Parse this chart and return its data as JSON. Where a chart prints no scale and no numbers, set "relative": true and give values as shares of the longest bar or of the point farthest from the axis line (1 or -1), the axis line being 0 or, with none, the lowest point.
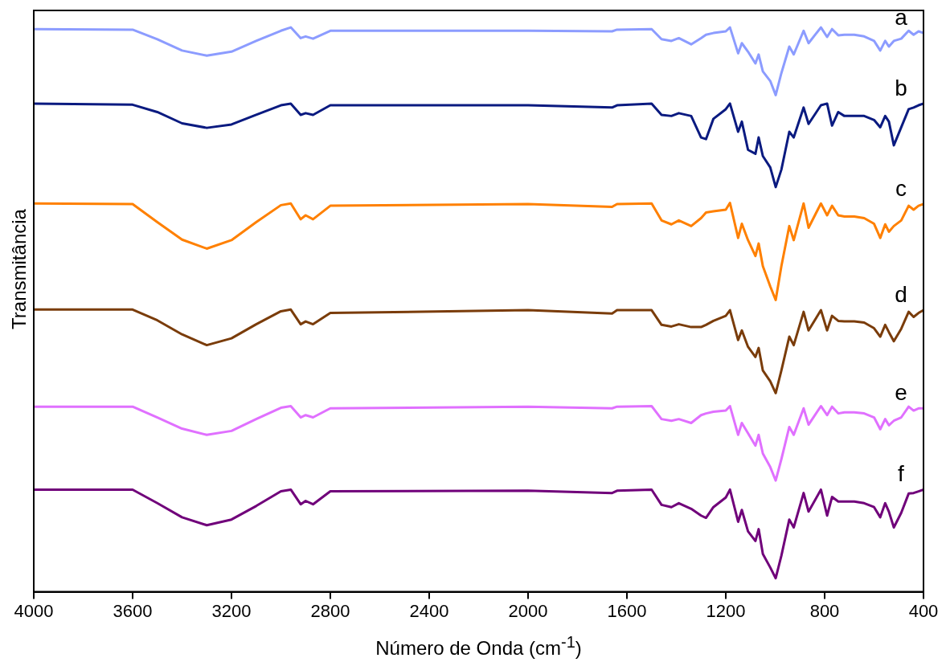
{
  "chart_data": {
    "type": "line",
    "relative": true,
    "xlabel": "Número de Onda (cm$^{-1}$)",
    "ylabel": "Transmitância",
    "xlim": [
      4000,
      400
    ],
    "xticks": [
      4000,
      3600,
      3200,
      2800,
      2400,
      2000,
      1600,
      1200,
      800,
      400
    ],
    "grid": false,
    "legend": false,
    "marker": "none",
    "line_style": "solid",
    "x": [
      4000,
      3600,
      3500,
      3400,
      3300,
      3200,
      3100,
      3000,
      2960,
      2920,
      2900,
      2870,
      2800,
      2000,
      1660,
      1640,
      1500,
      1460,
      1420,
      1390,
      1340,
      1300,
      1280,
      1250,
      1200,
      1183,
      1150,
      1135,
      1110,
      1080,
      1067,
      1050,
      1020,
      998,
      975,
      943,
      925,
      885,
      865,
      815,
      790,
      770,
      745,
      720,
      680,
      640,
      600,
      575,
      555,
      540,
      520,
      490,
      460,
      440,
      420,
      400
    ],
    "series": [
      {
        "name": "a",
        "color": "#8c9cff",
        "values": [
          0.997,
          0.996,
          0.979,
          0.959,
          0.95,
          0.957,
          0.976,
          0.994,
          1,
          0.981,
          0.984,
          0.98,
          0.994,
          0.994,
          0.993,
          0.996,
          0.997,
          0.979,
          0.976,
          0.981,
          0.97,
          0.981,
          0.987,
          0.99,
          0.993,
          1,
          0.954,
          0.972,
          0.957,
          0.936,
          0.952,
          0.922,
          0.905,
          0.88,
          0.919,
          0.966,
          0.952,
          0.994,
          0.972,
          1,
          0.983,
          0.997,
          0.986,
          0.987,
          0.987,
          0.984,
          0.976,
          0.959,
          0.976,
          0.966,
          0.976,
          0.98,
          0.994,
          0.987,
          0.993,
          0.99
        ]
      },
      {
        "name": "b",
        "color": "#0a1a80",
        "values": [
          0.865,
          0.863,
          0.85,
          0.83,
          0.822,
          0.828,
          0.845,
          0.862,
          0.865,
          0.845,
          0.848,
          0.845,
          0.862,
          0.862,
          0.858,
          0.862,
          0.865,
          0.845,
          0.843,
          0.848,
          0.843,
          0.805,
          0.802,
          0.838,
          0.855,
          0.865,
          0.815,
          0.833,
          0.783,
          0.776,
          0.805,
          0.772,
          0.752,
          0.717,
          0.748,
          0.815,
          0.805,
          0.858,
          0.829,
          0.862,
          0.865,
          0.826,
          0.85,
          0.843,
          0.843,
          0.843,
          0.836,
          0.823,
          0.843,
          0.833,
          0.791,
          0.823,
          0.855,
          0.858,
          0.862,
          0.865
        ]
      },
      {
        "name": "c",
        "color": "#ff8000",
        "values": [
          0.688,
          0.687,
          0.655,
          0.624,
          0.608,
          0.623,
          0.655,
          0.685,
          0.688,
          0.66,
          0.667,
          0.66,
          0.684,
          0.687,
          0.682,
          0.687,
          0.688,
          0.658,
          0.651,
          0.658,
          0.648,
          0.662,
          0.672,
          0.674,
          0.677,
          0.689,
          0.627,
          0.652,
          0.623,
          0.595,
          0.617,
          0.577,
          0.541,
          0.517,
          0.577,
          0.648,
          0.623,
          0.688,
          0.645,
          0.688,
          0.667,
          0.684,
          0.667,
          0.665,
          0.665,
          0.662,
          0.652,
          0.627,
          0.651,
          0.638,
          0.648,
          0.658,
          0.684,
          0.677,
          0.684,
          0.687
        ]
      },
      {
        "name": "d",
        "color": "#7a3c0a",
        "values": [
          0.5,
          0.5,
          0.481,
          0.456,
          0.437,
          0.449,
          0.474,
          0.497,
          0.5,
          0.474,
          0.479,
          0.474,
          0.494,
          0.499,
          0.493,
          0.499,
          0.499,
          0.473,
          0.47,
          0.474,
          0.469,
          0.469,
          0.473,
          0.48,
          0.489,
          0.499,
          0.446,
          0.463,
          0.434,
          0.416,
          0.432,
          0.392,
          0.373,
          0.352,
          0.392,
          0.452,
          0.437,
          0.496,
          0.463,
          0.499,
          0.463,
          0.489,
          0.48,
          0.479,
          0.479,
          0.477,
          0.467,
          0.452,
          0.473,
          0.46,
          0.444,
          0.466,
          0.496,
          0.487,
          0.494,
          0.499
        ]
      },
      {
        "name": "e",
        "color": "#e070ff",
        "values": [
          0.328,
          0.328,
          0.309,
          0.289,
          0.278,
          0.285,
          0.306,
          0.326,
          0.329,
          0.309,
          0.313,
          0.309,
          0.325,
          0.328,
          0.325,
          0.328,
          0.329,
          0.306,
          0.303,
          0.306,
          0.299,
          0.313,
          0.316,
          0.319,
          0.321,
          0.329,
          0.278,
          0.299,
          0.281,
          0.259,
          0.278,
          0.245,
          0.221,
          0.197,
          0.235,
          0.292,
          0.278,
          0.325,
          0.296,
          0.329,
          0.313,
          0.328,
          0.316,
          0.318,
          0.318,
          0.316,
          0.309,
          0.288,
          0.306,
          0.295,
          0.303,
          0.309,
          0.328,
          0.321,
          0.325,
          0.325
        ]
      },
      {
        "name": "f",
        "color": "#70007a",
        "values": [
          0.181,
          0.181,
          0.157,
          0.132,
          0.118,
          0.128,
          0.152,
          0.178,
          0.181,
          0.155,
          0.161,
          0.155,
          0.178,
          0.179,
          0.175,
          0.179,
          0.181,
          0.154,
          0.15,
          0.157,
          0.147,
          0.135,
          0.131,
          0.15,
          0.167,
          0.181,
          0.124,
          0.145,
          0.107,
          0.09,
          0.111,
          0.067,
          0.043,
          0.024,
          0.064,
          0.128,
          0.114,
          0.175,
          0.142,
          0.181,
          0.135,
          0.168,
          0.16,
          0.16,
          0.16,
          0.157,
          0.15,
          0.132,
          0.157,
          0.142,
          0.114,
          0.14,
          0.174,
          0.175,
          0.178,
          0.181
        ]
      }
    ]
  }
}
